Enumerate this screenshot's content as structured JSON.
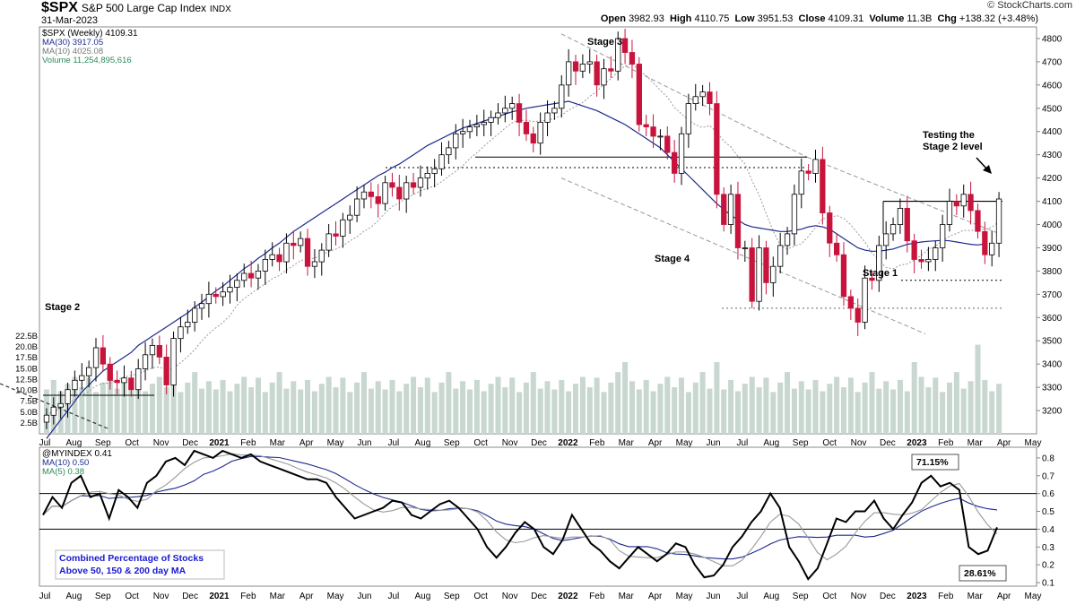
{
  "header": {
    "symbol": "$SPX",
    "name": "S&P 500 Large Cap Index",
    "exchange": "INDX",
    "date": "31-Mar-2023",
    "brand": "© StockCharts.com",
    "open_label": "Open",
    "open": "3982.93",
    "high_label": "High",
    "high": "4110.75",
    "low_label": "Low",
    "low": "3951.53",
    "close_label": "Close",
    "close": "4109.31",
    "volume_label": "Volume",
    "volume": "11.3B",
    "chg_label": "Chg",
    "chg": "+138.32 (+3.48%)"
  },
  "colors": {
    "up": "#ffffff",
    "down": "#c8143c",
    "ma30": "#1c2a8c",
    "ma10": "#999999",
    "volume": "#c8d7cf",
    "indicator": "#000000",
    "indicator_ma10": "#1c2a8c",
    "indicator_ma5": "#999999",
    "legend_text": "#1a1ad0"
  },
  "chart_data": [
    {
      "type": "candlestick",
      "legend": [
        {
          "label": "$SPX (Weekly) 4109.31",
          "color": "#000000"
        },
        {
          "label": "MA(30) 3917.05",
          "color": "#1c2a8c"
        },
        {
          "label": "MA(10) 4025.08",
          "color": "#999999"
        },
        {
          "label": "Volume 11,254,895,616",
          "color": "#2e8b57"
        }
      ],
      "ylim": [
        3100,
        4850
      ],
      "yticks": [
        3200,
        3300,
        3400,
        3500,
        3600,
        3700,
        3800,
        3900,
        4000,
        4100,
        4200,
        4300,
        4400,
        4500,
        4600,
        4700,
        4800
      ],
      "volume_ticks": [
        "2.5B",
        "5.0B",
        "7.5B",
        "10.0B",
        "12.5B",
        "15.0B",
        "17.5B",
        "20.0B",
        "22.5B"
      ],
      "volume_values_bn": [
        2.5,
        5.0,
        7.5,
        10.0,
        12.5,
        15.0,
        17.5,
        20.0,
        22.5
      ],
      "xlabels": [
        {
          "text": "Jul",
          "bold": false
        },
        {
          "text": "Aug",
          "bold": false
        },
        {
          "text": "Sep",
          "bold": false
        },
        {
          "text": "Oct",
          "bold": false
        },
        {
          "text": "Nov",
          "bold": false
        },
        {
          "text": "Dec",
          "bold": false
        },
        {
          "text": "2021",
          "bold": true
        },
        {
          "text": "Feb",
          "bold": false
        },
        {
          "text": "Mar",
          "bold": false
        },
        {
          "text": "Apr",
          "bold": false
        },
        {
          "text": "May",
          "bold": false
        },
        {
          "text": "Jun",
          "bold": false
        },
        {
          "text": "Jul",
          "bold": false
        },
        {
          "text": "Aug",
          "bold": false
        },
        {
          "text": "Sep",
          "bold": false
        },
        {
          "text": "Oct",
          "bold": false
        },
        {
          "text": "Nov",
          "bold": false
        },
        {
          "text": "Dec",
          "bold": false
        },
        {
          "text": "2022",
          "bold": true
        },
        {
          "text": "Feb",
          "bold": false
        },
        {
          "text": "Mar",
          "bold": false
        },
        {
          "text": "Apr",
          "bold": false
        },
        {
          "text": "May",
          "bold": false
        },
        {
          "text": "Jun",
          "bold": false
        },
        {
          "text": "Jul",
          "bold": false
        },
        {
          "text": "Aug",
          "bold": false
        },
        {
          "text": "Sep",
          "bold": false
        },
        {
          "text": "Oct",
          "bold": false
        },
        {
          "text": "Nov",
          "bold": false
        },
        {
          "text": "Dec",
          "bold": false
        },
        {
          "text": "2023",
          "bold": true
        },
        {
          "text": "Feb",
          "bold": false
        },
        {
          "text": "Mar",
          "bold": false
        },
        {
          "text": "Apr",
          "bold": false
        },
        {
          "text": "May",
          "bold": false
        }
      ],
      "close_series": [
        3180,
        3215,
        3230,
        3290,
        3330,
        3350,
        3385,
        3470,
        3400,
        3330,
        3320,
        3340,
        3290,
        3380,
        3440,
        3480,
        3430,
        3310,
        3510,
        3560,
        3580,
        3640,
        3660,
        3700,
        3690,
        3710,
        3730,
        3760,
        3790,
        3770,
        3800,
        3850,
        3870,
        3840,
        3920,
        3910,
        3940,
        3820,
        3840,
        3890,
        3960,
        3950,
        4020,
        4040,
        4110,
        4140,
        4120,
        4090,
        4180,
        4160,
        4110,
        4180,
        4160,
        4200,
        4220,
        4240,
        4300,
        4330,
        4390,
        4400,
        4420,
        4430,
        4440,
        4460,
        4480,
        4500,
        4520,
        4440,
        4390,
        4350,
        4440,
        4480,
        4500,
        4600,
        4700,
        4660,
        4690,
        4700,
        4600,
        4670,
        4660,
        4800,
        4740,
        4690,
        4430,
        4420,
        4380,
        4380,
        4310,
        4220,
        4390,
        4520,
        4550,
        4570,
        4520,
        4130,
        4000,
        4130,
        3900,
        3900,
        3670,
        3900,
        3750,
        3820,
        3910,
        3960,
        4130,
        4230,
        4220,
        4280,
        4050,
        3920,
        3870,
        3690,
        3640,
        3580,
        3770,
        3760,
        3910,
        3960,
        4000,
        4070,
        3930,
        3850,
        3840,
        3850,
        3900,
        4000,
        4100,
        4080,
        4130,
        4060,
        3970,
        3870,
        3920,
        4110
      ],
      "ma30_series": [
        3080,
        3120,
        3160,
        3200,
        3240,
        3280,
        3310,
        3340,
        3370,
        3390,
        3410,
        3430,
        3450,
        3480,
        3500,
        3520,
        3540,
        3560,
        3580,
        3600,
        3620,
        3645,
        3665,
        3690,
        3715,
        3735,
        3760,
        3785,
        3810,
        3830,
        3855,
        3875,
        3900,
        3920,
        3945,
        3970,
        3990,
        4010,
        4030,
        4050,
        4070,
        4090,
        4110,
        4130,
        4150,
        4170,
        4190,
        4210,
        4225,
        4245,
        4260,
        4280,
        4300,
        4320,
        4340,
        4355,
        4370,
        4385,
        4400,
        4415,
        4425,
        4435,
        4445,
        4455,
        4465,
        4475,
        4485,
        4492,
        4500,
        4505,
        4510,
        4515,
        4520,
        4525,
        4530,
        4520,
        4510,
        4500,
        4490,
        4475,
        4460,
        4445,
        4430,
        4410,
        4390,
        4370,
        4350,
        4330,
        4300,
        4270,
        4240,
        4210,
        4180,
        4150,
        4120,
        4090,
        4065,
        4040,
        4020,
        4000,
        3990,
        3985,
        3980,
        3975,
        3970,
        3970,
        3975,
        3980,
        3990,
        3995,
        3990,
        3980,
        3960,
        3940,
        3920,
        3900,
        3890,
        3885,
        3885,
        3890,
        3895,
        3905,
        3915,
        3920,
        3925,
        3928,
        3930,
        3932,
        3930,
        3925,
        3920,
        3915,
        3912,
        3917
      ]
    },
    {
      "type": "line",
      "legend": [
        {
          "label": "@MYINDEX 0.41",
          "color": "#000000"
        },
        {
          "label": "MA(10) 0.50",
          "color": "#1c2a8c"
        },
        {
          "label": "MA(5) 0.38",
          "color": "#2e8b57"
        }
      ],
      "ylim": [
        0.08,
        0.86
      ],
      "yticks": [
        0.1,
        0.2,
        0.3,
        0.4,
        0.5,
        0.6,
        0.7,
        0.8
      ],
      "hlines": [
        0.4,
        0.6
      ],
      "callouts": [
        "71.15%",
        "28.61%"
      ],
      "caption_lines": [
        "Combined Percentage of Stocks",
        "Above 50, 150 & 200 day MA"
      ],
      "series": [
        0.48,
        0.58,
        0.52,
        0.66,
        0.7,
        0.58,
        0.6,
        0.46,
        0.62,
        0.58,
        0.52,
        0.66,
        0.7,
        0.78,
        0.8,
        0.76,
        0.84,
        0.82,
        0.8,
        0.84,
        0.82,
        0.8,
        0.82,
        0.78,
        0.76,
        0.74,
        0.72,
        0.7,
        0.68,
        0.68,
        0.66,
        0.58,
        0.52,
        0.46,
        0.48,
        0.5,
        0.52,
        0.56,
        0.55,
        0.48,
        0.46,
        0.5,
        0.54,
        0.56,
        0.52,
        0.46,
        0.4,
        0.3,
        0.24,
        0.3,
        0.38,
        0.44,
        0.4,
        0.3,
        0.26,
        0.34,
        0.48,
        0.4,
        0.32,
        0.28,
        0.22,
        0.18,
        0.24,
        0.3,
        0.26,
        0.22,
        0.26,
        0.32,
        0.3,
        0.2,
        0.13,
        0.14,
        0.2,
        0.3,
        0.36,
        0.44,
        0.5,
        0.6,
        0.52,
        0.3,
        0.22,
        0.12,
        0.18,
        0.32,
        0.46,
        0.44,
        0.5,
        0.5,
        0.56,
        0.46,
        0.4,
        0.48,
        0.55,
        0.66,
        0.7,
        0.64,
        0.66,
        0.62,
        0.3,
        0.26,
        0.28,
        0.41
      ]
    }
  ],
  "annotations": {
    "stage2": "Stage 2",
    "stage3": "Stage 3",
    "stage4": "Stage 4",
    "stage1": "Stage 1",
    "testing_line1": "Testing the",
    "testing_line2": "Stage 2 level"
  }
}
